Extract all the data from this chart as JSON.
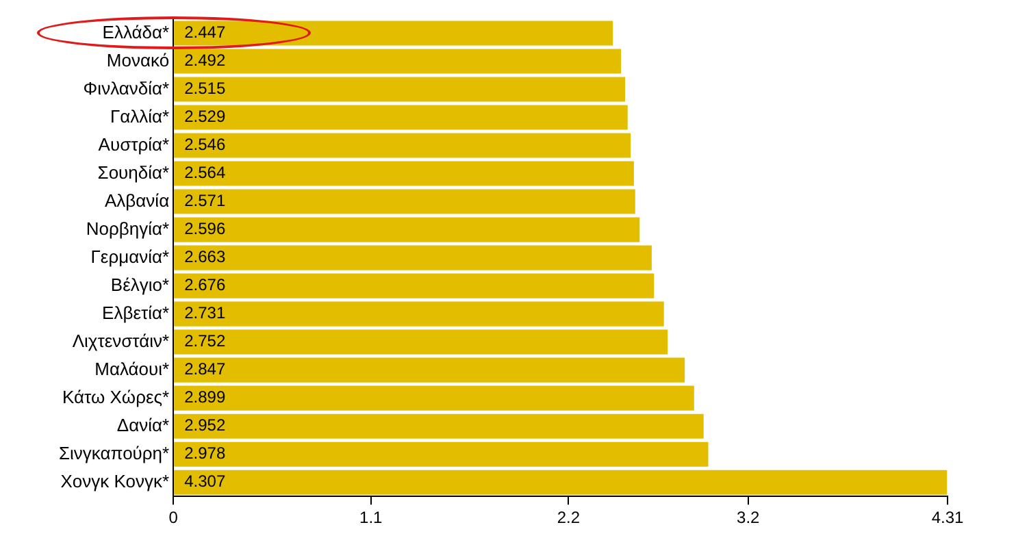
{
  "chart_data": {
    "type": "bar",
    "orientation": "horizontal",
    "categories": [
      "Ελλάδα*",
      "Μονακό",
      "Φινλανδία*",
      "Γαλλία*",
      "Αυστρία*",
      "Σουηδία*",
      "Αλβανία",
      "Νορβηγία*",
      "Γερμανία*",
      "Βέλγιο*",
      "Ελβετία*",
      "Λιχτενστάιν*",
      "Μαλάουι*",
      "Κάτω Χώρες*",
      "Δανία*",
      "Σινγκαπούρη*",
      "Χονγκ Κονγκ*"
    ],
    "values": [
      2.447,
      2.492,
      2.515,
      2.529,
      2.546,
      2.564,
      2.571,
      2.596,
      2.663,
      2.676,
      2.731,
      2.752,
      2.847,
      2.899,
      2.952,
      2.978,
      4.307
    ],
    "color": "#e2bd00",
    "xlim": [
      0,
      4.31
    ],
    "xticks": [
      0,
      1.1,
      2.2,
      3.2,
      4.31
    ],
    "data_labels": true,
    "grid": false,
    "legend": false
  }
}
